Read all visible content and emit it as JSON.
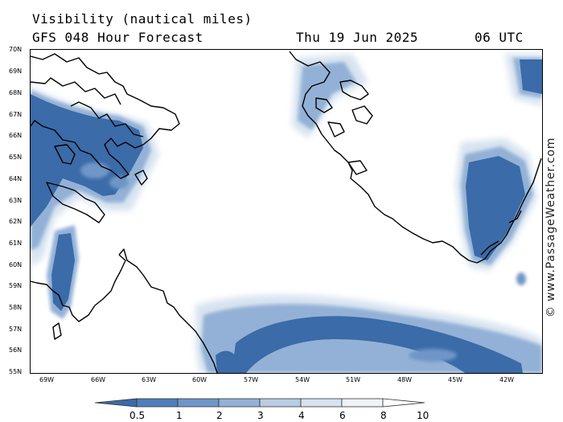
{
  "header": {
    "title": "Visibility (nautical miles)",
    "subtitle": "GFS 048 Hour Forecast",
    "date": "Thu 19 Jun 2025",
    "time": "06 UTC"
  },
  "credit": "© www.PassageWeather.com",
  "lat_labels": [
    "70N",
    "69N",
    "68N",
    "67N",
    "66N",
    "65N",
    "64N",
    "63N",
    "62N",
    "61N",
    "60N",
    "59N",
    "58N",
    "57N",
    "56N",
    "55N"
  ],
  "lon_labels": [
    "69W",
    "66W",
    "63W",
    "60W",
    "57W",
    "54W",
    "51W",
    "48W",
    "45W",
    "42W"
  ],
  "legend": {
    "ticks": [
      "0.5",
      "1",
      "2",
      "3",
      "4",
      "6",
      "8",
      "10"
    ],
    "colors": [
      "#3b6ba8",
      "#4f7fbb",
      "#6f96c8",
      "#93b1d6",
      "#b8cde4",
      "#d7e3f0",
      "#eef3f9",
      "#ffffff"
    ]
  },
  "colors": {
    "low_visibility": "#3b6ba8",
    "mid_visibility": "#93b1d6",
    "high_visibility": "#ffffff",
    "coastline": "#000000"
  }
}
